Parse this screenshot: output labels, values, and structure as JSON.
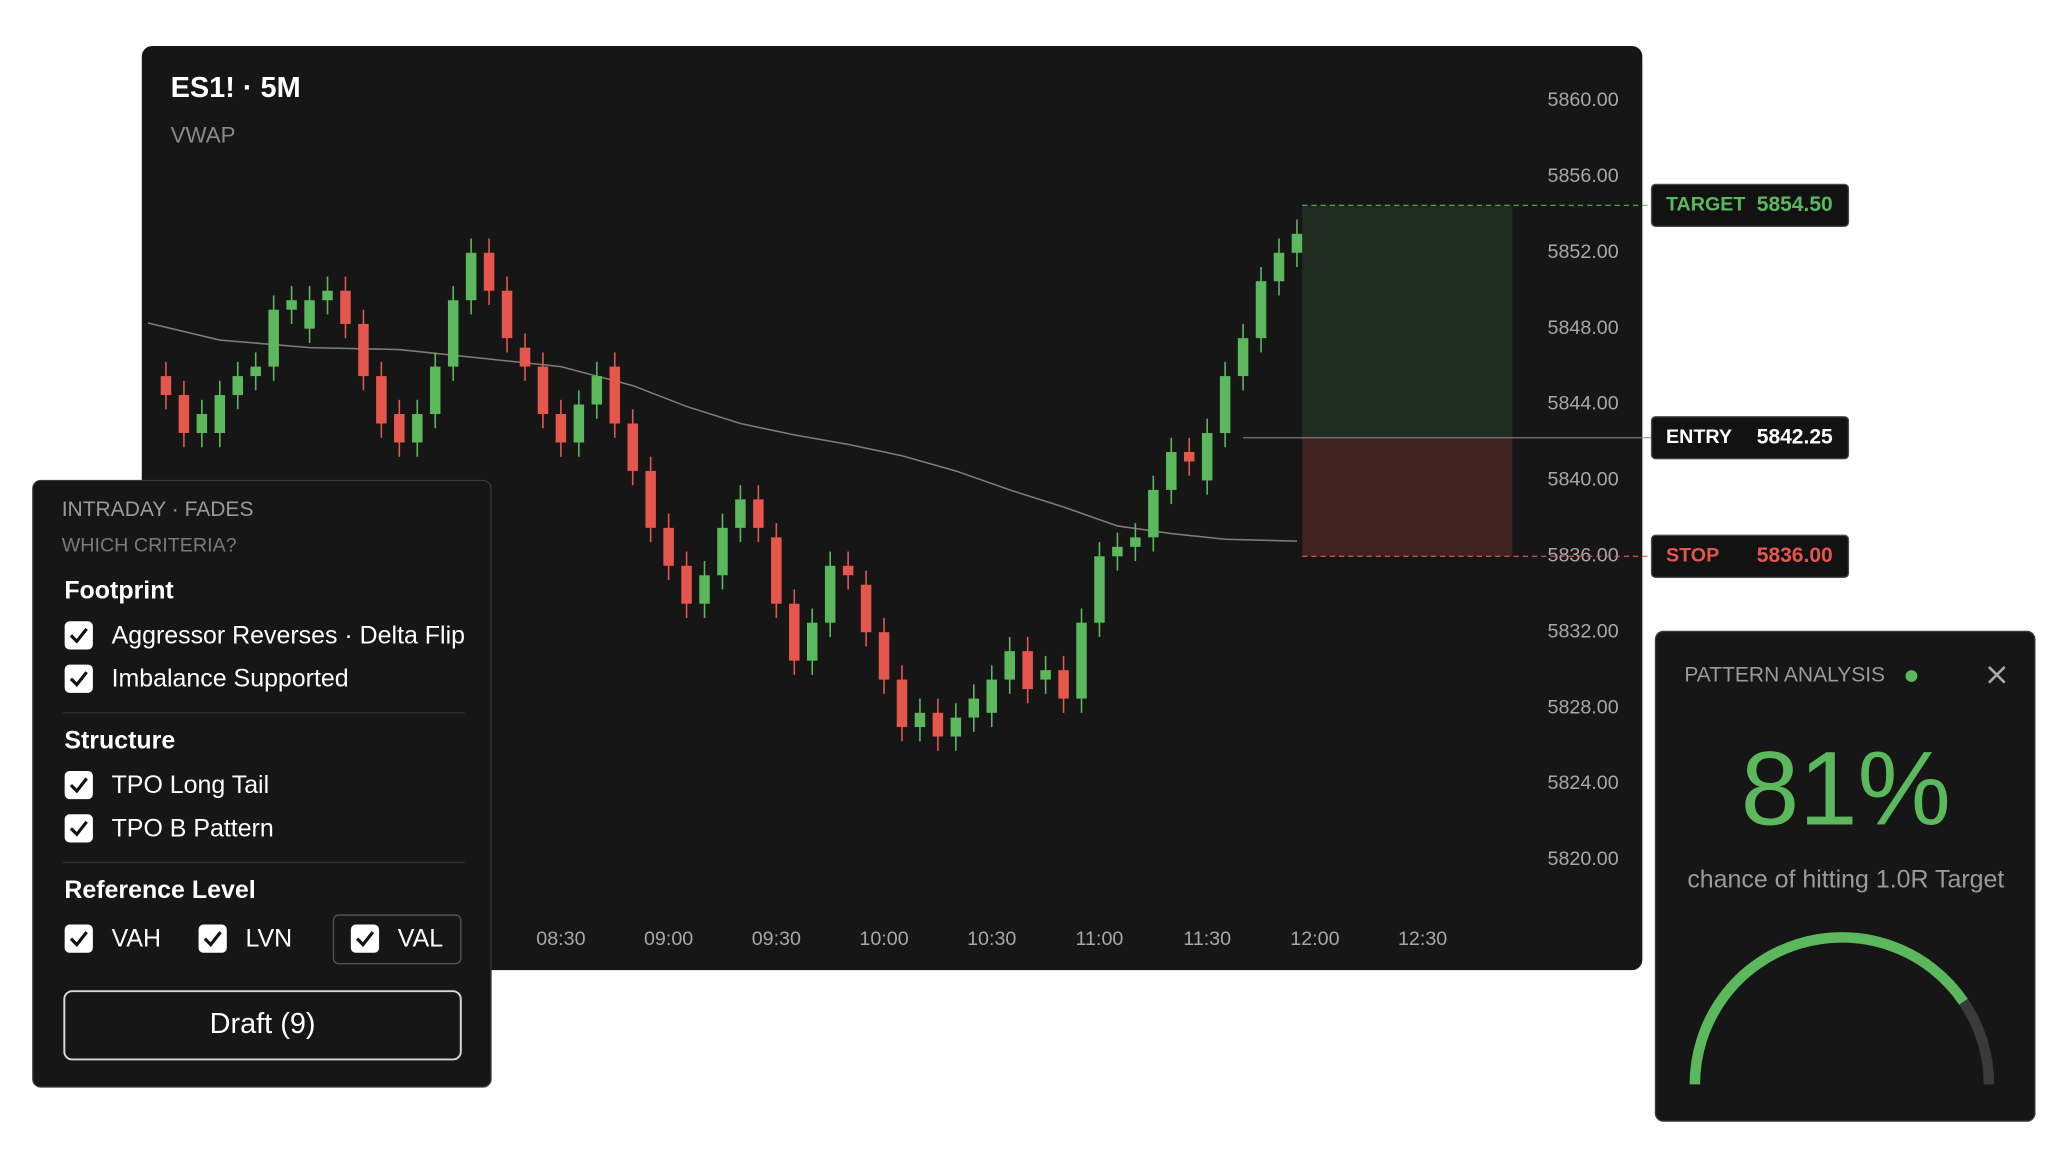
{
  "chart_data": {
    "type": "candlestick",
    "title": "ES1! · 5M",
    "x": [
      400,
      405,
      410,
      415,
      420,
      425,
      430,
      435,
      440,
      445,
      450,
      455,
      460,
      465,
      470,
      475,
      480,
      485,
      490,
      495,
      500,
      505,
      510,
      515,
      520,
      525,
      530,
      535,
      540,
      545,
      550,
      555,
      560,
      565,
      570,
      575,
      580,
      585,
      590,
      595,
      600,
      605,
      610,
      615,
      620,
      625,
      630,
      635,
      640,
      645,
      650,
      655,
      660,
      665,
      670,
      675,
      680,
      685,
      690,
      695,
      700,
      705,
      710,
      715
    ],
    "open": [
      5845.5,
      5844.5,
      5842.5,
      5842.5,
      5844.5,
      5845.5,
      5846,
      5849,
      5848,
      5849.5,
      5850,
      5848.25,
      5845.5,
      5843.5,
      5842,
      5843.5,
      5846,
      5849.5,
      5852,
      5850,
      5847,
      5846,
      5843.5,
      5842,
      5844,
      5846,
      5843,
      5840.5,
      5837.5,
      5835.5,
      5833.5,
      5835,
      5837.5,
      5839,
      5837,
      5833.5,
      5830.5,
      5832.5,
      5835.5,
      5834.5,
      5832,
      5829.5,
      5827,
      5827.75,
      5826.5,
      5827.5,
      5827.75,
      5829.5,
      5831,
      5829.5,
      5830,
      5828.5,
      5832.5,
      5836,
      5836.5,
      5837,
      5839.5,
      5841.5,
      5840,
      5842.5,
      5845.5,
      5847.5,
      5850.5,
      5852
    ],
    "high": [
      5846.25,
      5845.25,
      5844.25,
      5845.25,
      5846.25,
      5846.75,
      5849.75,
      5850.25,
      5850.25,
      5850.75,
      5850.75,
      5849,
      5846.25,
      5844.25,
      5844.25,
      5846.75,
      5850.25,
      5852.75,
      5852.75,
      5850.75,
      5847.75,
      5846.75,
      5844.25,
      5844.75,
      5846.25,
      5846.75,
      5843.75,
      5841.25,
      5838.25,
      5836.25,
      5835.75,
      5838.25,
      5839.75,
      5839.75,
      5837.75,
      5834.25,
      5833.25,
      5836.25,
      5836.25,
      5835.25,
      5832.75,
      5830.25,
      5828.5,
      5828.5,
      5828.25,
      5829.25,
      5830.25,
      5831.75,
      5831.75,
      5830.75,
      5830.75,
      5833.25,
      5836.75,
      5837.25,
      5837.75,
      5840.25,
      5842.25,
      5842.25,
      5843.25,
      5846.25,
      5848.25,
      5851.25,
      5852.75,
      5853.75
    ],
    "low": [
      5843.75,
      5841.75,
      5841.75,
      5841.75,
      5843.75,
      5844.75,
      5845.25,
      5848.25,
      5847.25,
      5848.75,
      5847.5,
      5844.75,
      5842.25,
      5841.25,
      5841.25,
      5842.75,
      5845.25,
      5848.75,
      5849.25,
      5846.75,
      5845.25,
      5842.75,
      5841.25,
      5841.25,
      5843.25,
      5842.25,
      5839.75,
      5836.75,
      5834.75,
      5832.75,
      5832.75,
      5834.25,
      5836.75,
      5836.75,
      5832.75,
      5829.75,
      5829.75,
      5831.75,
      5834.25,
      5831.25,
      5828.75,
      5826.25,
      5826.25,
      5825.75,
      5825.75,
      5826.75,
      5827,
      5828.75,
      5828.25,
      5828.75,
      5827.75,
      5827.75,
      5831.75,
      5835.25,
      5835.75,
      5836.25,
      5838.75,
      5840.25,
      5839.25,
      5841.75,
      5844.75,
      5846.75,
      5849.75,
      5851.25
    ],
    "close": [
      5844.5,
      5842.5,
      5843.5,
      5844.5,
      5845.5,
      5846,
      5849,
      5849.5,
      5849.5,
      5850,
      5848.25,
      5845.5,
      5843,
      5842,
      5843.5,
      5846,
      5849.5,
      5852,
      5850,
      5847.5,
      5846,
      5843.5,
      5842,
      5844,
      5845.5,
      5843,
      5840.5,
      5837.5,
      5835.5,
      5833.5,
      5835,
      5837.5,
      5839,
      5837.5,
      5833.5,
      5830.5,
      5832.5,
      5835.5,
      5835,
      5832,
      5829.5,
      5827,
      5827.75,
      5826.5,
      5827.5,
      5828.5,
      5829.5,
      5831,
      5829,
      5830,
      5828.5,
      5832.5,
      5836,
      5836.5,
      5837,
      5839.5,
      5841.5,
      5841,
      5842.5,
      5845.5,
      5847.5,
      5850.5,
      5852,
      5853
    ],
    "up_color": "#5cb85c",
    "down_color": "#e5574d",
    "overlay": {
      "name": "VWAP",
      "color": "#7d7d7d",
      "x": [
        395,
        415,
        440,
        465,
        490,
        510,
        530,
        545,
        560,
        575,
        590,
        605,
        620,
        635,
        650,
        665,
        680,
        695,
        715
      ],
      "values": [
        5848.3,
        5847.4,
        5847,
        5846.9,
        5846.4,
        5846,
        5845,
        5843.9,
        5843,
        5842.4,
        5841.9,
        5841.3,
        5840.5,
        5839.5,
        5838.6,
        5837.6,
        5837.2,
        5836.9,
        5836.8
      ]
    },
    "xlim": [
      394,
      775
    ],
    "xticks": [
      {
        "value": 510,
        "label": "08:30"
      },
      {
        "value": 540,
        "label": "09:00"
      },
      {
        "value": 570,
        "label": "09:30"
      },
      {
        "value": 600,
        "label": "10:00"
      },
      {
        "value": 630,
        "label": "10:30"
      },
      {
        "value": 660,
        "label": "11:00"
      },
      {
        "value": 690,
        "label": "11:30"
      },
      {
        "value": 720,
        "label": "12:00"
      },
      {
        "value": 750,
        "label": "12:30"
      }
    ],
    "ylim": [
      5817,
      5863
    ],
    "yticks": [
      {
        "value": 5860,
        "label": "5860.00"
      },
      {
        "value": 5856,
        "label": "5856.00"
      },
      {
        "value": 5852,
        "label": "5852.00"
      },
      {
        "value": 5848,
        "label": "5848.00"
      },
      {
        "value": 5844,
        "label": "5844.00"
      },
      {
        "value": 5840,
        "label": "5840.00"
      },
      {
        "value": 5836,
        "label": "5836.00"
      },
      {
        "value": 5832,
        "label": "5832.00"
      },
      {
        "value": 5828,
        "label": "5828.00"
      },
      {
        "value": 5824,
        "label": "5824.00"
      },
      {
        "value": 5820,
        "label": "5820.00"
      }
    ],
    "levels": [
      {
        "name": "TARGET",
        "value": 5854.5,
        "value_label": "5854.50",
        "color": "#5cb85c"
      },
      {
        "name": "ENTRY",
        "value": 5842.25,
        "value_label": "5842.25",
        "color": "#ffffff"
      },
      {
        "name": "STOP",
        "value": 5836,
        "value_label": "5836.00",
        "color": "#e5574d"
      }
    ]
  },
  "criteria": {
    "title": "INTRADAY · FADES",
    "subtitle": "WHICH CRITERIA?",
    "groups": [
      {
        "name": "Footprint",
        "items": [
          {
            "label": "Aggressor Reverses · Delta Flip",
            "checked": true
          },
          {
            "label": "Imbalance Supported",
            "checked": true
          }
        ]
      },
      {
        "name": "Structure",
        "items": [
          {
            "label": "TPO Long Tail",
            "checked": true
          },
          {
            "label": "TPO B Pattern",
            "checked": true
          }
        ]
      },
      {
        "name": "Reference Level",
        "items": [
          {
            "label": "VAH",
            "checked": true,
            "selected": false
          },
          {
            "label": "LVN",
            "checked": true,
            "selected": false
          },
          {
            "label": "VAL",
            "checked": true,
            "selected": true
          }
        ]
      }
    ],
    "button": "Draft (9)"
  },
  "pattern": {
    "title": "PATTERN ANALYSIS",
    "value": 81,
    "value_label": "81%",
    "range": [
      0,
      100
    ],
    "caption": "chance of hitting 1.0R Target",
    "color": "#5cb85c"
  }
}
